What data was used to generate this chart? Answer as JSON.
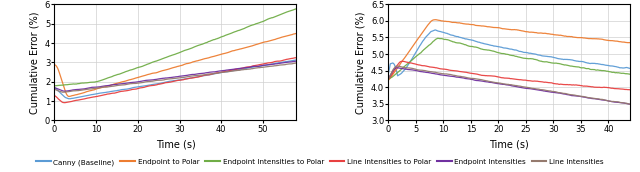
{
  "left_plot": {
    "xlabel": "Time (s)",
    "ylabel": "Cumulative Error (%)",
    "xlim": [
      0,
      58
    ],
    "ylim": [
      0.0,
      6.0
    ],
    "yticks": [
      0.0,
      1.0,
      2.0,
      3.0,
      4.0,
      5.0,
      6.0
    ],
    "xticks": [
      0,
      10,
      20,
      30,
      40,
      50
    ]
  },
  "right_plot": {
    "xlabel": "Time (s)",
    "ylabel": "Cumulative Error (%)",
    "xlim": [
      0,
      44
    ],
    "ylim": [
      3.0,
      6.5
    ],
    "yticks": [
      3.0,
      3.5,
      4.0,
      4.5,
      5.0,
      5.5,
      6.0,
      6.5
    ],
    "xticks": [
      0,
      5,
      10,
      15,
      20,
      25,
      30,
      35,
      40
    ]
  },
  "legend": {
    "entries": [
      "Canny (Baseline)",
      "Endpoint to Polar",
      "Endpoint Intensities to Polar",
      "Line Intensities to Polar",
      "Endpoint Intensities",
      "Line Intensities"
    ],
    "colors": [
      "#5b9bd5",
      "#ed7d31",
      "#70ad47",
      "#e84040",
      "#7030a0",
      "#957a6e"
    ]
  }
}
